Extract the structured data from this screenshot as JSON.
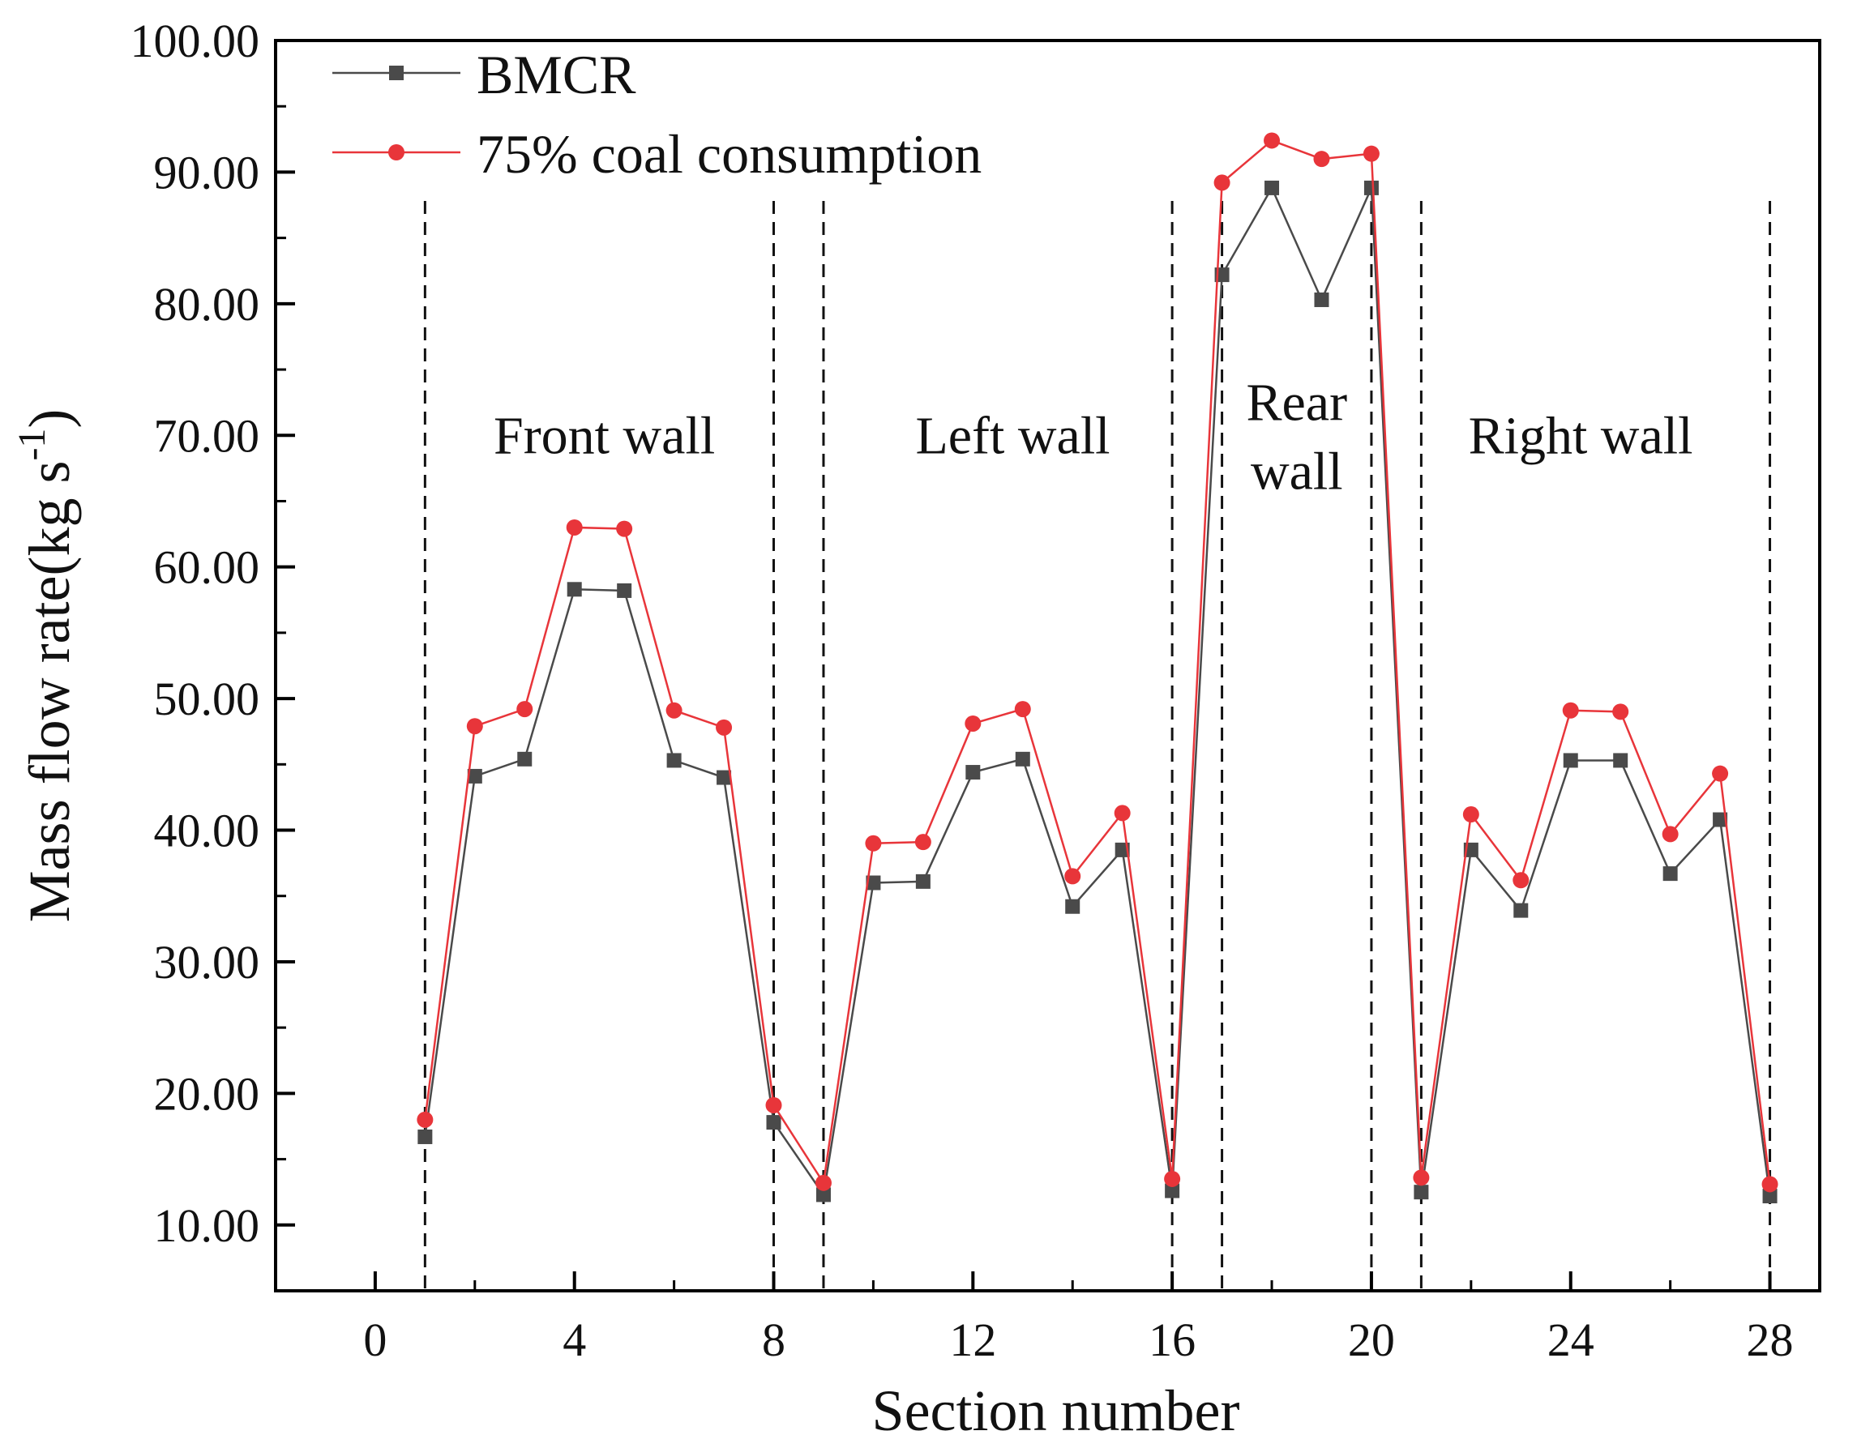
{
  "chart_data": {
    "type": "line",
    "title": "",
    "xlabel": "Section number",
    "ylabel": "Mass flow rate(kg s",
    "ylabel_superscript": "-1",
    "ylabel_suffix": ")",
    "xlim": [
      -2,
      29
    ],
    "ylim": [
      5,
      100
    ],
    "xticks": [
      0,
      4,
      8,
      12,
      16,
      20,
      24,
      28
    ],
    "xtick_labels": [
      "0",
      "4",
      "8",
      "12",
      "16",
      "20",
      "24",
      "28"
    ],
    "yticks": [
      10,
      20,
      30,
      40,
      50,
      60,
      70,
      80,
      90,
      100
    ],
    "ytick_labels": [
      "10.00",
      "20.00",
      "30.00",
      "40.00",
      "50.00",
      "60.00",
      "70.00",
      "80.00",
      "90.00",
      "100.00"
    ],
    "x": [
      1,
      2,
      3,
      4,
      5,
      6,
      7,
      8,
      9,
      10,
      11,
      12,
      13,
      14,
      15,
      16,
      17,
      18,
      19,
      20,
      21,
      22,
      23,
      24,
      25,
      26,
      27,
      28
    ],
    "series": [
      {
        "name": "BMCR",
        "color": "#4a4a4a",
        "marker": "square",
        "values": [
          16.7,
          44.1,
          45.4,
          58.3,
          58.2,
          45.3,
          44.0,
          17.8,
          12.3,
          36.0,
          36.1,
          44.4,
          45.4,
          34.2,
          38.5,
          12.6,
          82.2,
          88.8,
          80.3,
          88.8,
          12.5,
          38.5,
          33.9,
          45.3,
          45.3,
          36.7,
          40.8,
          12.2
        ]
      },
      {
        "name": "75% coal consumption",
        "color": "#e8353a",
        "marker": "circle",
        "values": [
          18.0,
          47.9,
          49.2,
          63.0,
          62.9,
          49.1,
          47.8,
          19.1,
          13.2,
          39.0,
          39.1,
          48.1,
          49.2,
          36.5,
          41.3,
          13.5,
          89.2,
          92.4,
          91.0,
          91.4,
          13.6,
          41.2,
          36.2,
          49.1,
          49.0,
          39.7,
          44.3,
          13.1
        ]
      }
    ],
    "vlines": [
      1,
      8,
      9,
      16,
      17,
      20,
      21,
      28
    ],
    "regions": [
      {
        "lines": [
          "Front wall"
        ],
        "x": 4.6,
        "y": 70.0
      },
      {
        "lines": [
          "Left wall"
        ],
        "x": 12.8,
        "y": 70.0
      },
      {
        "lines": [
          "Rear",
          "wall"
        ],
        "x": 18.5,
        "y": 72.5
      },
      {
        "lines": [
          "Right wall"
        ],
        "x": 24.2,
        "y": 70.0
      }
    ],
    "legend_position": "top-left",
    "grid": false
  }
}
